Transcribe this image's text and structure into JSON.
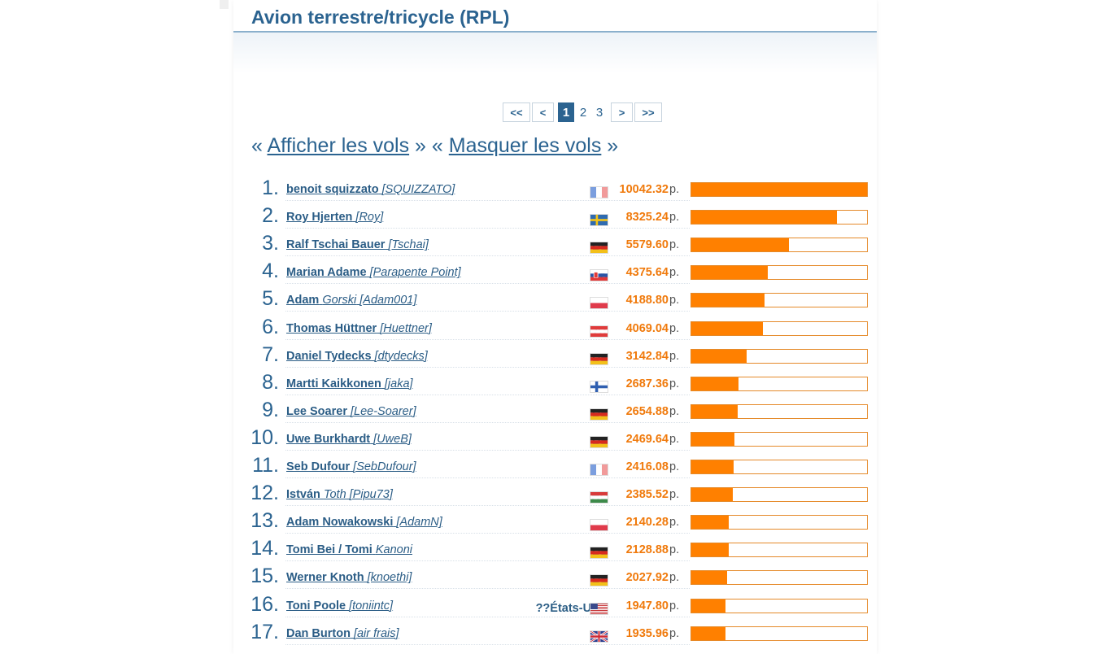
{
  "page": {
    "title": "Avion terrestre/tricycle (RPL)",
    "pager": {
      "first": "<<",
      "prev": "<",
      "current": "1",
      "pages": [
        "2",
        "3"
      ],
      "next": ">",
      "last": ">>"
    },
    "toggle": {
      "open": "«",
      "show": "Afficher les vols",
      "middle": "» «",
      "hide": "Masquer les vols",
      "close": "»"
    },
    "points_unit": "p.",
    "max_points": 10042.32,
    "colors": {
      "accent": "#2b6390",
      "bar": "#ff8000",
      "points": "#f07a0c"
    }
  },
  "ranking": [
    {
      "rank": "1.",
      "first": "benoit squizzato",
      "rest": "",
      "alias": "[SQUIZZATO]",
      "country": "FR",
      "flag": "fr-flag",
      "points": "10042.32",
      "value": 10042.32
    },
    {
      "rank": "2.",
      "first": "Roy Hjerten",
      "rest": "",
      "alias": "[Roy]",
      "country": "SE",
      "flag": "se-flag",
      "points": "8325.24",
      "value": 8325.24
    },
    {
      "rank": "3.",
      "first": "Ralf Tschai Bauer",
      "rest": "",
      "alias": "[Tschai]",
      "country": "DE",
      "flag": "de-flag",
      "points": "5579.60",
      "value": 5579.6
    },
    {
      "rank": "4.",
      "first": "Marian Adame",
      "rest": "",
      "alias": "[Parapente Point]",
      "country": "SK",
      "flag": "sk-flag",
      "points": "4375.64",
      "value": 4375.64
    },
    {
      "rank": "5.",
      "first": "Adam",
      "rest": "Gorski",
      "alias": "[Adam001]",
      "country": "PL",
      "flag": "pl-flag",
      "points": "4188.80",
      "value": 4188.8
    },
    {
      "rank": "6.",
      "first": "Thomas Hüttner",
      "rest": "",
      "alias": "[Huettner]",
      "country": "AT",
      "flag": "at-flag",
      "points": "4069.04",
      "value": 4069.04
    },
    {
      "rank": "7.",
      "first": "Daniel Tydecks",
      "rest": "",
      "alias": "[dtydecks]",
      "country": "DE",
      "flag": "de-flag",
      "points": "3142.84",
      "value": 3142.84
    },
    {
      "rank": "8.",
      "first": "Martti Kaikkonen",
      "rest": "",
      "alias": "[jaka]",
      "country": "FI",
      "flag": "fi-flag",
      "points": "2687.36",
      "value": 2687.36
    },
    {
      "rank": "9.",
      "first": "Lee Soarer",
      "rest": "",
      "alias": "[Lee-Soarer]",
      "country": "DE",
      "flag": "de-flag",
      "points": "2654.88",
      "value": 2654.88
    },
    {
      "rank": "10.",
      "first": "Uwe Burkhardt",
      "rest": "",
      "alias": "[UweB]",
      "country": "DE",
      "flag": "de-flag",
      "points": "2469.64",
      "value": 2469.64
    },
    {
      "rank": "11.",
      "first": "Seb Dufour",
      "rest": "",
      "alias": "[SebDufour]",
      "country": "FR",
      "flag": "fr-flag",
      "points": "2416.08",
      "value": 2416.08
    },
    {
      "rank": "12.",
      "first": "István",
      "rest": "Toth",
      "alias": "[Pipu73]",
      "country": "HU",
      "flag": "hu-flag",
      "points": "2385.52",
      "value": 2385.52
    },
    {
      "rank": "13.",
      "first": "Adam Nowakowski",
      "rest": "",
      "alias": "[AdamN]",
      "country": "PL",
      "flag": "pl-flag",
      "points": "2140.28",
      "value": 2140.28
    },
    {
      "rank": "14.",
      "first": "Tomi Bei / Tomi",
      "rest": "Kanoni",
      "alias": "",
      "country": "DE",
      "flag": "de-flag",
      "points": "2128.88",
      "value": 2128.88
    },
    {
      "rank": "15.",
      "first": "Werner Knoth",
      "rest": "",
      "alias": "[knoethi]",
      "country": "DE",
      "flag": "de-flag",
      "points": "2027.92",
      "value": 2027.92
    },
    {
      "rank": "16.",
      "first": "Toni Poole",
      "rest": "",
      "alias": "[toniintc]",
      "country": "??États-Unis",
      "flag": "us-flag",
      "points": "1947.80",
      "value": 1947.8
    },
    {
      "rank": "17.",
      "first": "Dan Burton",
      "rest": "",
      "alias": "[air frais]",
      "country": "GB",
      "flag": "gb-flag",
      "points": "1935.96",
      "value": 1935.96
    }
  ]
}
